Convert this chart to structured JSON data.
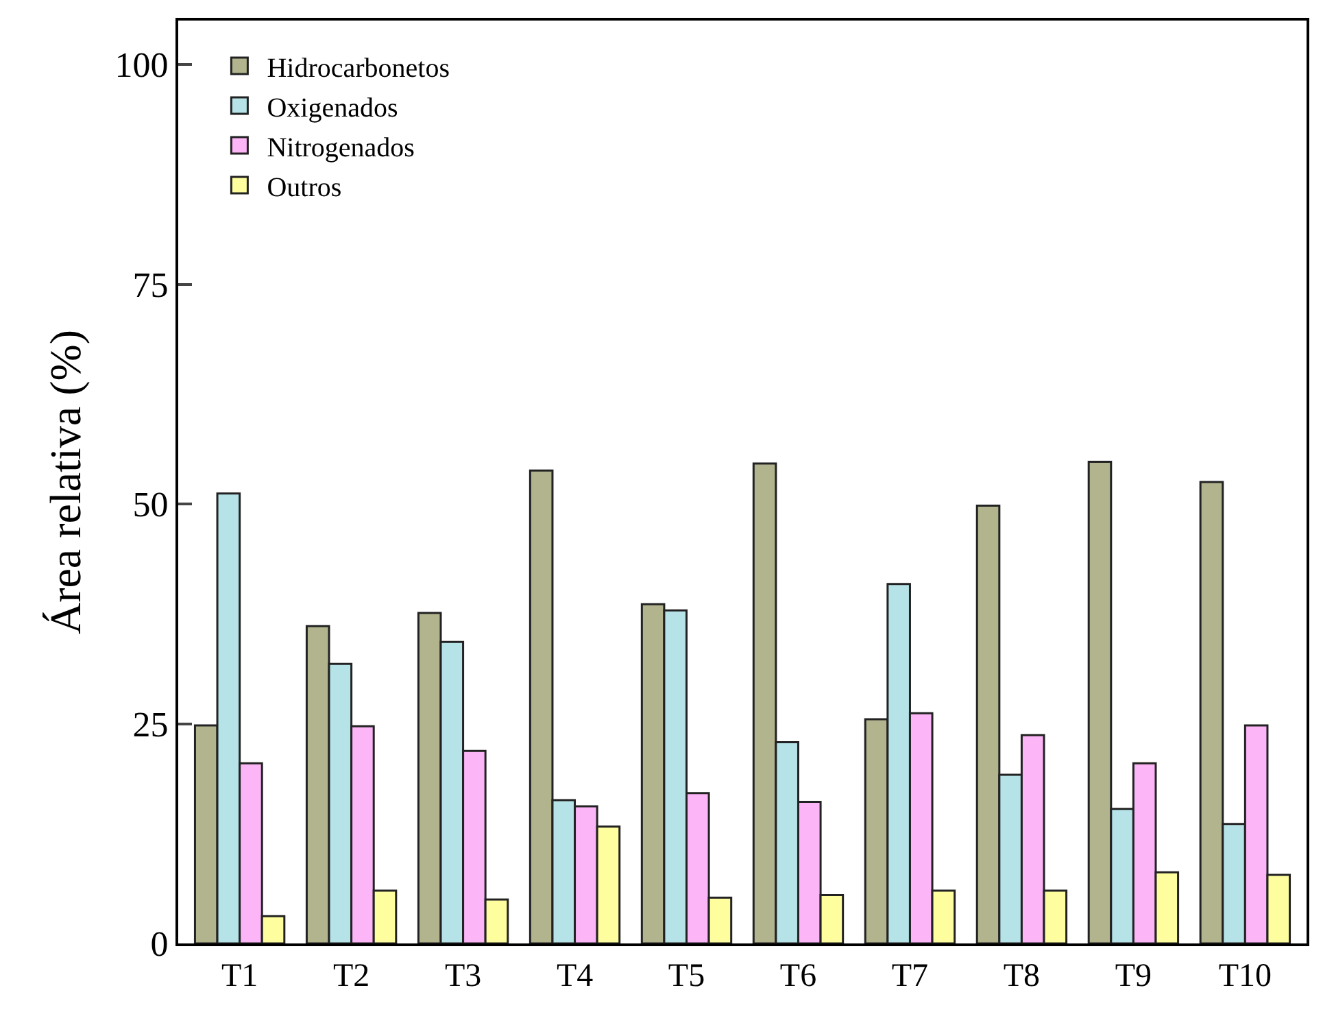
{
  "chart_data": {
    "type": "bar",
    "ylabel": "Área relativa (%)",
    "categories": [
      "T1",
      "T2",
      "T3",
      "T4",
      "T5",
      "T6",
      "T7",
      "T8",
      "T9",
      "T10"
    ],
    "series": [
      {
        "name": "Hidrocarbonetos",
        "color": "#b2b48e",
        "values": [
          24.8,
          36.1,
          37.6,
          53.8,
          38.6,
          54.6,
          25.5,
          49.8,
          54.8,
          52.5
        ]
      },
      {
        "name": "Oxigenados",
        "color": "#b5e3e8",
        "values": [
          51.2,
          31.8,
          34.3,
          16.3,
          37.9,
          22.9,
          40.9,
          19.2,
          15.3,
          13.6
        ]
      },
      {
        "name": "Nitrogenados",
        "color": "#fcb5f7",
        "values": [
          20.5,
          24.7,
          21.9,
          15.6,
          17.1,
          16.1,
          26.2,
          23.7,
          20.5,
          24.8
        ]
      },
      {
        "name": "Outros",
        "color": "#fefe9e",
        "values": [
          3.1,
          6.0,
          5.0,
          13.3,
          5.2,
          5.5,
          6.0,
          6.0,
          8.1,
          7.8
        ]
      }
    ],
    "ylim": [
      0,
      105
    ],
    "yticks": [
      0,
      25,
      50,
      75,
      100
    ],
    "legend": "top left"
  }
}
